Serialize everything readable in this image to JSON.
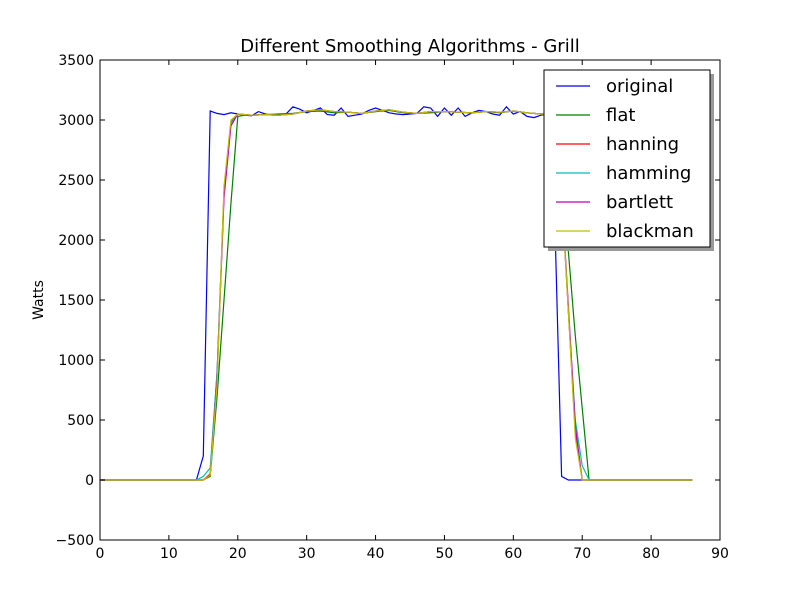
{
  "chart_data": {
    "type": "line",
    "title": "Different Smoothing Algorithms - Grill",
    "xlabel": "",
    "ylabel": "Watts",
    "xlim": [
      0,
      90
    ],
    "ylim": [
      -500,
      3500
    ],
    "xticks": [
      0,
      10,
      20,
      30,
      40,
      50,
      60,
      70,
      80,
      90
    ],
    "yticks": [
      -500,
      0,
      500,
      1000,
      1500,
      2000,
      2500,
      3000,
      3500
    ],
    "grid": false,
    "legend_position": "top-right",
    "series": [
      {
        "name": "original",
        "color": "#0000ff",
        "x": [
          0,
          14,
          15,
          16,
          17,
          18,
          19,
          20,
          21,
          22,
          23,
          24,
          25,
          26,
          27,
          28,
          29,
          30,
          31,
          32,
          33,
          34,
          35,
          36,
          37,
          38,
          39,
          40,
          41,
          42,
          43,
          44,
          45,
          46,
          47,
          48,
          49,
          50,
          51,
          52,
          53,
          54,
          55,
          56,
          57,
          58,
          59,
          60,
          61,
          62,
          63,
          64,
          65,
          66,
          67,
          68,
          69,
          70,
          86
        ],
        "y": [
          0,
          0,
          200,
          3075,
          3055,
          3045,
          3060,
          3050,
          3040,
          3035,
          3070,
          3050,
          3040,
          3045,
          3050,
          3110,
          3090,
          3060,
          3080,
          3100,
          3045,
          3040,
          3100,
          3030,
          3040,
          3050,
          3080,
          3100,
          3080,
          3060,
          3050,
          3045,
          3050,
          3055,
          3110,
          3100,
          3030,
          3100,
          3040,
          3100,
          3030,
          3060,
          3080,
          3070,
          3050,
          3040,
          3110,
          3050,
          3070,
          3030,
          3020,
          3040,
          3050,
          2200,
          30,
          0,
          0,
          0,
          0
        ]
      },
      {
        "name": "flat",
        "color": "#008000",
        "x": [
          0,
          15,
          16,
          17,
          18,
          19,
          20,
          21,
          22,
          24,
          26,
          28,
          30,
          32,
          34,
          36,
          38,
          40,
          42,
          44,
          46,
          48,
          50,
          52,
          54,
          56,
          58,
          60,
          62,
          64,
          65,
          66,
          67,
          68,
          69,
          70,
          71,
          86
        ],
        "y": [
          0,
          0,
          30,
          700,
          1500,
          2300,
          3030,
          3040,
          3040,
          3045,
          3050,
          3055,
          3070,
          3075,
          3060,
          3065,
          3055,
          3070,
          3080,
          3060,
          3055,
          3060,
          3070,
          3065,
          3060,
          3070,
          3060,
          3075,
          3060,
          3050,
          3050,
          3000,
          2500,
          1900,
          1200,
          600,
          0,
          0
        ]
      },
      {
        "name": "hanning",
        "color": "#ff0000",
        "x": [
          0,
          15,
          16,
          17,
          18,
          19,
          20,
          21,
          22,
          24,
          26,
          28,
          30,
          32,
          34,
          36,
          38,
          40,
          42,
          44,
          46,
          48,
          50,
          52,
          54,
          56,
          58,
          60,
          62,
          64,
          65,
          66,
          67,
          68,
          69,
          70,
          86
        ],
        "y": [
          0,
          0,
          50,
          900,
          2400,
          2980,
          3050,
          3045,
          3040,
          3045,
          3040,
          3050,
          3075,
          3085,
          3070,
          3065,
          3055,
          3075,
          3085,
          3065,
          3055,
          3070,
          3070,
          3065,
          3060,
          3070,
          3065,
          3075,
          3060,
          3050,
          3050,
          3000,
          2400,
          1400,
          400,
          0,
          0
        ]
      },
      {
        "name": "hamming",
        "color": "#00bfbf",
        "x": [
          0,
          14,
          15,
          16,
          17,
          18,
          19,
          20,
          21,
          22,
          24,
          26,
          28,
          30,
          32,
          34,
          36,
          38,
          40,
          42,
          44,
          46,
          48,
          50,
          52,
          54,
          56,
          58,
          60,
          62,
          64,
          65,
          66,
          67,
          68,
          69,
          70,
          71,
          86
        ],
        "y": [
          0,
          0,
          30,
          100,
          900,
          2400,
          2970,
          3050,
          3045,
          3040,
          3045,
          3040,
          3050,
          3075,
          3085,
          3070,
          3065,
          3055,
          3075,
          3085,
          3065,
          3055,
          3070,
          3070,
          3065,
          3060,
          3070,
          3065,
          3075,
          3060,
          3050,
          3050,
          3000,
          2400,
          1400,
          500,
          120,
          0,
          0
        ]
      },
      {
        "name": "bartlett",
        "color": "#bf00bf",
        "x": [
          0,
          15,
          16,
          17,
          18,
          19,
          20,
          21,
          22,
          24,
          26,
          28,
          30,
          32,
          34,
          36,
          38,
          40,
          42,
          44,
          46,
          48,
          50,
          52,
          54,
          56,
          58,
          60,
          62,
          64,
          65,
          66,
          67,
          68,
          69,
          70,
          86
        ],
        "y": [
          0,
          0,
          40,
          850,
          2350,
          2950,
          3050,
          3045,
          3040,
          3045,
          3040,
          3050,
          3075,
          3085,
          3070,
          3065,
          3055,
          3075,
          3085,
          3065,
          3055,
          3070,
          3070,
          3065,
          3060,
          3070,
          3065,
          3075,
          3060,
          3050,
          3050,
          3000,
          2400,
          1450,
          450,
          0,
          0
        ]
      },
      {
        "name": "blackman",
        "color": "#bfbf00",
        "x": [
          0,
          15,
          16,
          17,
          18,
          19,
          20,
          21,
          22,
          24,
          26,
          28,
          30,
          32,
          34,
          36,
          38,
          40,
          42,
          44,
          46,
          48,
          50,
          52,
          54,
          56,
          58,
          60,
          62,
          64,
          65,
          66,
          67,
          68,
          69,
          70,
          86
        ],
        "y": [
          0,
          0,
          40,
          800,
          2450,
          3000,
          3050,
          3045,
          3040,
          3045,
          3040,
          3050,
          3075,
          3085,
          3070,
          3065,
          3055,
          3075,
          3085,
          3065,
          3055,
          3070,
          3070,
          3065,
          3060,
          3070,
          3065,
          3075,
          3060,
          3050,
          3050,
          3000,
          2400,
          1400,
          350,
          0,
          0
        ]
      }
    ]
  }
}
